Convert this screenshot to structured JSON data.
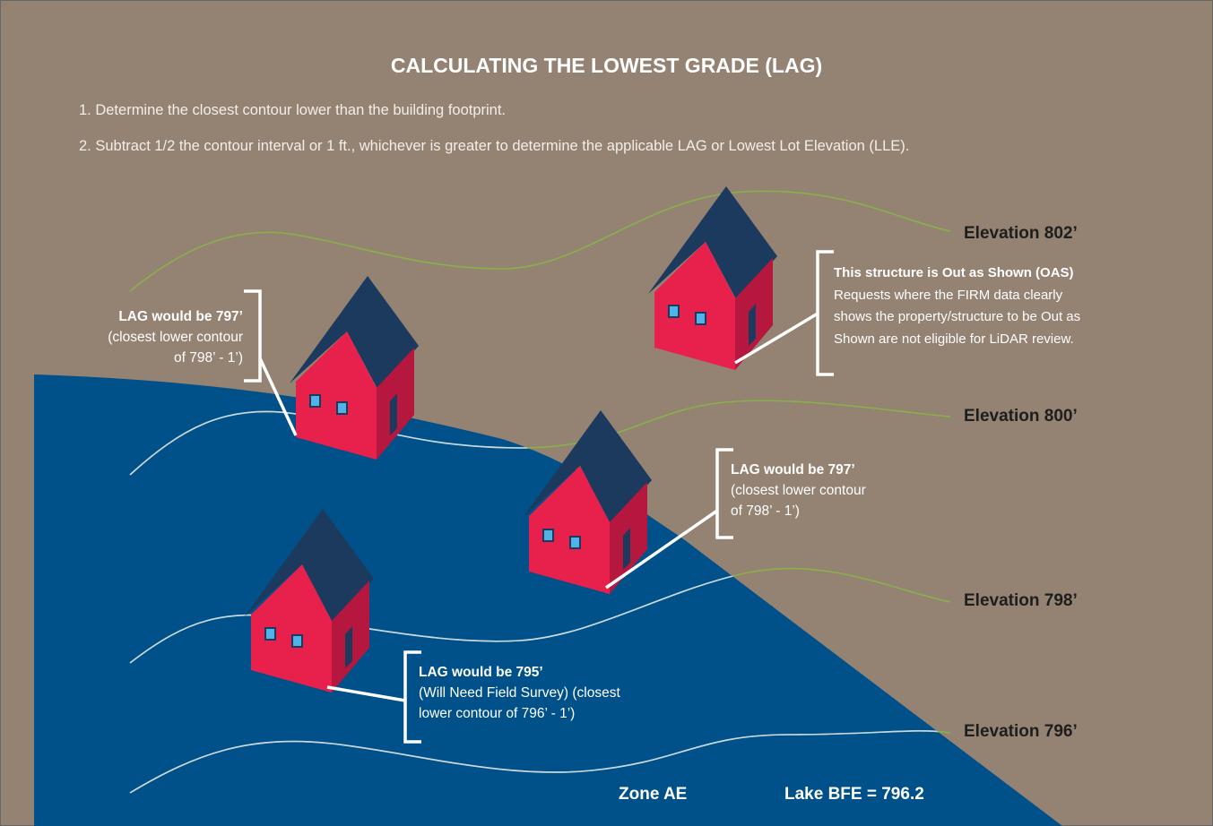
{
  "title": "CALCULATING THE LOWEST GRADE (LAG)",
  "steps": [
    "1. Determine the closest contour lower than the building footprint.",
    "2. Subtract 1/2 the contour interval or 1 ft., whichever is greater to determine the applicable LAG or Lowest Lot Elevation (LLE)."
  ],
  "elevations": [
    "Elevation 802’",
    "Elevation 800’",
    "Elevation 798’",
    "Elevation 796’"
  ],
  "callouts": [
    {
      "heading": "LAG would be 797’",
      "body_lines": [
        "(closest lower contour",
        "of 798’ - 1’)"
      ]
    },
    {
      "heading": "This structure is Out as Shown (OAS)",
      "body_lines": [
        "Requests where the FIRM data clearly",
        "shows the property/structure to be Out as",
        "Shown are not eligible for LiDAR review."
      ]
    },
    {
      "heading": "LAG would be 797’",
      "body_lines": [
        "(closest lower contour",
        "of 798’ - 1’)"
      ]
    },
    {
      "heading": "LAG would be 795’",
      "body_lines": [
        "(Will Need Field Survey) (closest",
        "lower contour of 796’ - 1’)"
      ]
    }
  ],
  "footer": {
    "zone": "Zone AE",
    "bfe": "Lake BFE = 796.2"
  }
}
